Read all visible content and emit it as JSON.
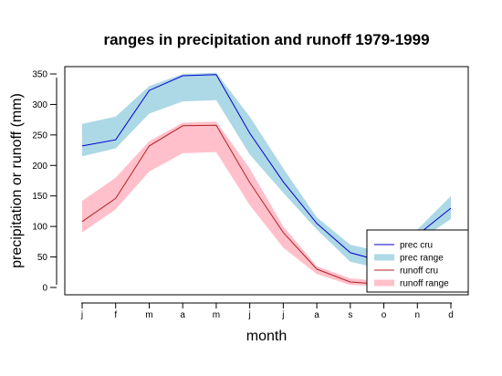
{
  "chart_data": {
    "type": "line",
    "title": "ranges in precipitation and runoff 1979-1999",
    "xlabel": "month",
    "ylabel": "precipitation or runoff (mm)",
    "categories": [
      "j",
      "f",
      "m",
      "a",
      "m",
      "j",
      "j",
      "a",
      "s",
      "o",
      "n",
      "d"
    ],
    "ylim": [
      -12,
      362
    ],
    "yticks": [
      0,
      50,
      100,
      150,
      200,
      250,
      300,
      350
    ],
    "grid": false,
    "legend_position": "bottom-right",
    "series": [
      {
        "name": "prec range",
        "kind": "band",
        "color": "#ADD8E6",
        "lower": [
          215,
          228,
          285,
          305,
          307,
          218,
          155,
          95,
          42,
          30,
          75,
          112
        ],
        "upper": [
          268,
          280,
          330,
          350,
          352,
          280,
          195,
          115,
          70,
          58,
          95,
          150
        ]
      },
      {
        "name": "runoff range",
        "kind": "band",
        "color": "#FFC0CB",
        "lower": [
          90,
          128,
          190,
          220,
          222,
          135,
          65,
          22,
          4,
          2,
          2,
          2
        ],
        "upper": [
          142,
          180,
          240,
          270,
          272,
          195,
          100,
          35,
          15,
          10,
          8,
          8
        ]
      },
      {
        "name": "prec cru",
        "kind": "line",
        "color": "#0000CD",
        "values": [
          232,
          242,
          323,
          347,
          349,
          253,
          173,
          105,
          57,
          42,
          86,
          130
        ]
      },
      {
        "name": "runoff cru",
        "kind": "line",
        "color": "#B22222",
        "values": [
          108,
          146,
          232,
          265,
          266,
          172,
          90,
          30,
          9,
          5,
          5,
          5
        ]
      }
    ],
    "legend": [
      {
        "label": "prec cru",
        "style": "line",
        "color": "#0000CD"
      },
      {
        "label": "prec range",
        "style": "band",
        "color": "#ADD8E6"
      },
      {
        "label": "runoff cru",
        "style": "line",
        "color": "#B22222"
      },
      {
        "label": "runoff range",
        "style": "band",
        "color": "#FFC0CB"
      }
    ]
  }
}
